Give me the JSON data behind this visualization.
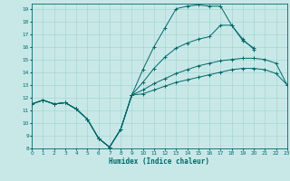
{
  "xlabel": "Humidex (Indice chaleur)",
  "xlim": [
    0,
    23
  ],
  "ylim": [
    8,
    19.4
  ],
  "xticks": [
    0,
    1,
    2,
    3,
    4,
    5,
    6,
    7,
    8,
    9,
    10,
    11,
    12,
    13,
    14,
    15,
    16,
    17,
    18,
    19,
    20,
    21,
    22,
    23
  ],
  "yticks": [
    8,
    9,
    10,
    11,
    12,
    13,
    14,
    15,
    16,
    17,
    18,
    19
  ],
  "bg_color": "#c8e8e8",
  "grid_color": "#a8d4d4",
  "line_color": "#006868",
  "lines": [
    {
      "x": [
        0,
        1,
        2,
        3,
        4,
        5,
        6,
        7,
        8,
        9,
        10,
        11,
        12,
        13,
        14,
        15,
        16,
        17,
        18,
        19,
        20
      ],
      "y": [
        11.5,
        11.8,
        11.5,
        11.6,
        11.1,
        10.3,
        8.8,
        8.1,
        9.5,
        12.2,
        14.2,
        16.0,
        17.5,
        19.0,
        19.2,
        19.3,
        19.2,
        19.2,
        17.7,
        16.5,
        15.9
      ]
    },
    {
      "x": [
        0,
        1,
        2,
        3,
        4,
        5,
        6,
        7,
        8,
        9,
        10,
        11,
        12,
        13,
        14,
        15,
        16,
        17,
        18,
        19,
        20
      ],
      "y": [
        11.5,
        11.8,
        11.5,
        11.6,
        11.1,
        10.3,
        8.8,
        8.1,
        9.5,
        12.2,
        13.2,
        14.3,
        15.2,
        15.9,
        16.3,
        16.6,
        16.8,
        17.7,
        17.7,
        16.6,
        15.8
      ]
    },
    {
      "x": [
        0,
        1,
        2,
        3,
        4,
        5,
        6,
        7,
        8,
        9,
        10,
        11,
        12,
        13,
        14,
        15,
        16,
        17,
        18,
        19,
        20,
        21,
        22,
        23
      ],
      "y": [
        11.5,
        11.8,
        11.5,
        11.6,
        11.1,
        10.3,
        8.8,
        8.1,
        9.5,
        12.2,
        12.6,
        13.1,
        13.5,
        13.9,
        14.2,
        14.5,
        14.7,
        14.9,
        15.0,
        15.1,
        15.1,
        15.0,
        14.7,
        13.0
      ]
    },
    {
      "x": [
        0,
        1,
        2,
        3,
        4,
        5,
        6,
        7,
        8,
        9,
        10,
        11,
        12,
        13,
        14,
        15,
        16,
        17,
        18,
        19,
        20,
        21,
        22,
        23
      ],
      "y": [
        11.5,
        11.8,
        11.5,
        11.6,
        11.1,
        10.3,
        8.8,
        8.1,
        9.5,
        12.2,
        12.3,
        12.6,
        12.9,
        13.2,
        13.4,
        13.6,
        13.8,
        14.0,
        14.2,
        14.3,
        14.3,
        14.2,
        13.9,
        13.0
      ]
    }
  ]
}
